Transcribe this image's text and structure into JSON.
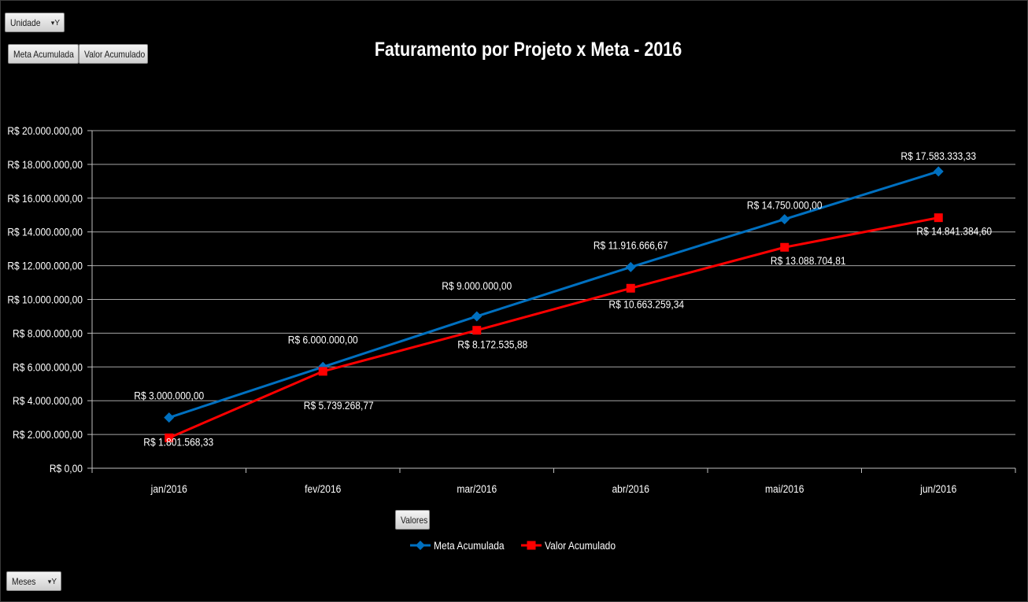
{
  "buttons": {
    "unidade": "Unidade",
    "meta_acumulada": "Meta Acumulada",
    "valor_acumulado": "Valor Acumulado",
    "valores": "Valores",
    "meses": "Meses"
  },
  "icons": {
    "filter": "filter-dropdown-icon"
  },
  "colors": {
    "background": "#000000",
    "meta": "#0070c0",
    "valor": "#ff0000",
    "grid": "#a6a6a6",
    "text": "#ffffff"
  },
  "chart_data": {
    "type": "line",
    "title": "Faturamento por Projeto x Meta - 2016",
    "xlabel": "",
    "ylabel": "",
    "categories": [
      "jan/2016",
      "fev/2016",
      "mar/2016",
      "abr/2016",
      "mai/2016",
      "jun/2016"
    ],
    "ylim": [
      0,
      20000000
    ],
    "yticks": [
      0,
      2000000,
      4000000,
      6000000,
      8000000,
      10000000,
      12000000,
      14000000,
      16000000,
      18000000,
      20000000
    ],
    "ytick_labels": [
      "R$ 0,00",
      "R$ 2.000.000,00",
      "R$ 4.000.000,00",
      "R$ 6.000.000,00",
      "R$ 8.000.000,00",
      "R$ 10.000.000,00",
      "R$ 12.000.000,00",
      "R$ 14.000.000,00",
      "R$ 16.000.000,00",
      "R$ 18.000.000,00",
      "R$ 20.000.000,00"
    ],
    "grid": true,
    "legend_position": "bottom",
    "series": [
      {
        "name": "Meta Acumulada",
        "marker": "diamond",
        "values": [
          3000000,
          6000000,
          9000000,
          11916666.67,
          14750000,
          17583333.33
        ],
        "labels": [
          "R$ 3.000.000,00",
          "R$ 6.000.000,00",
          "R$ 9.000.000,00",
          "R$ 11.916.666,67",
          "R$ 14.750.000,00",
          "R$ 17.583.333,33"
        ]
      },
      {
        "name": "Valor Acumulado",
        "marker": "square",
        "values": [
          1801568.33,
          5739268.77,
          8172535.88,
          10663259.34,
          13088704.81,
          14841384.6
        ],
        "labels": [
          "R$ 1.801.568,33",
          "R$ 5.739.268,77",
          "R$ 8.172.535,88",
          "R$ 10.663.259,34",
          "R$ 13.088.704,81",
          "R$ 14.841.384,60"
        ]
      }
    ]
  }
}
